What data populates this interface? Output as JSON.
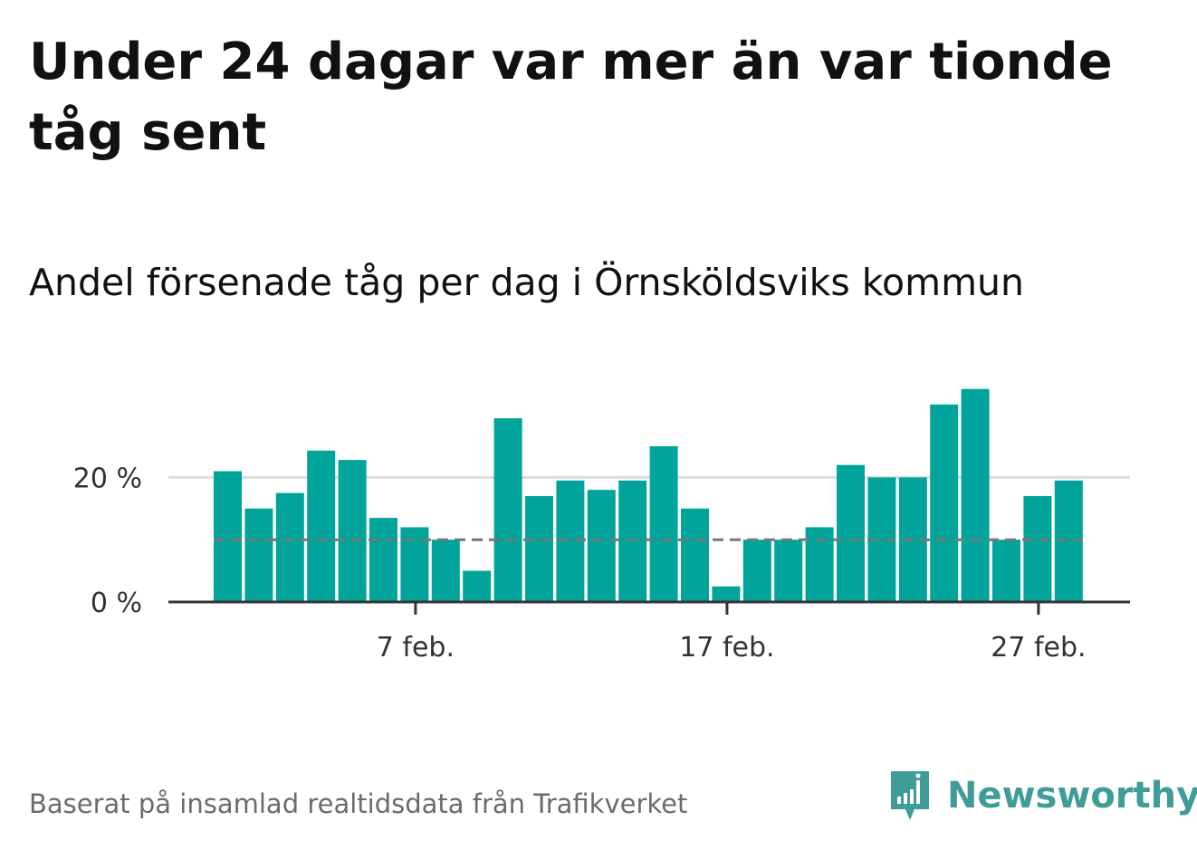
{
  "header": {
    "title": "Under 24 dagar var mer än var tionde tåg sent",
    "subtitle": "Andel försenade tåg per dag i Örnsköldsviks kommun"
  },
  "footer": {
    "source": "Baserat på insamlad realtidsdata från Trafikverket",
    "brand": "Newsworthy"
  },
  "colors": {
    "bar": "#00a49a",
    "grid": "#dddddd",
    "axis": "#333333",
    "reference_line": "#777777",
    "brand": "#3f9c98"
  },
  "icons": {
    "brand_logo": "newsworthy-logo-icon"
  },
  "chart_data": {
    "type": "bar",
    "x": [
      "1 feb.",
      "2 feb.",
      "3 feb.",
      "4 feb.",
      "5 feb.",
      "6 feb.",
      "7 feb.",
      "8 feb.",
      "9 feb.",
      "10 feb.",
      "11 feb.",
      "12 feb.",
      "13 feb.",
      "14 feb.",
      "15 feb.",
      "16 feb.",
      "17 feb.",
      "18 feb.",
      "19 feb.",
      "20 feb.",
      "21 feb.",
      "22 feb.",
      "23 feb.",
      "24 feb.",
      "25 feb.",
      "26 feb.",
      "27 feb.",
      "28 feb."
    ],
    "values": [
      21,
      15,
      17.5,
      24.3,
      22.8,
      13.5,
      12,
      10,
      5,
      29.5,
      17,
      19.5,
      18,
      19.5,
      25,
      15,
      2.5,
      10,
      10,
      12,
      22,
      20,
      20,
      31.7,
      34.2,
      10,
      17,
      19.5
    ],
    "xticks": [
      "7 feb.",
      "17 feb.",
      "27 feb."
    ],
    "yticks": [
      {
        "value": 0,
        "label": "0 %"
      },
      {
        "value": 20,
        "label": "20 %"
      }
    ],
    "ylim": [
      0,
      36
    ],
    "reference_line": {
      "value": 10,
      "style": "dashed"
    },
    "grid": true,
    "legend": "none"
  }
}
